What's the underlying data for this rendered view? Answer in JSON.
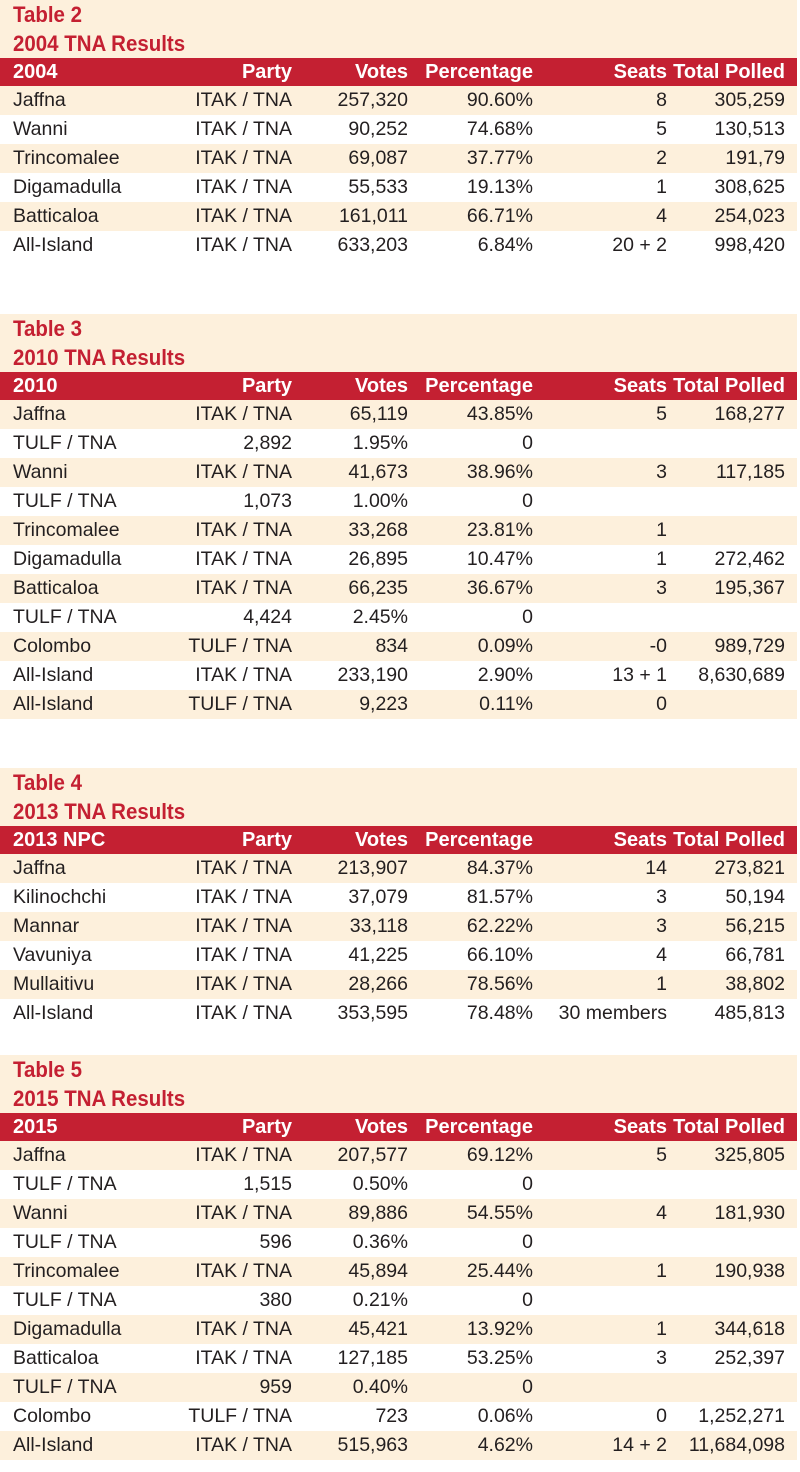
{
  "headers": {
    "party": "Party",
    "votes": "Votes",
    "percentage": "Percentage",
    "seats": "Seats",
    "total": "Total Polled"
  },
  "tables": [
    {
      "label": "Table 2",
      "title": "2004 TNA Results",
      "first_col": "2004",
      "rows": [
        {
          "name": "Jaffna",
          "party": "ITAK / TNA",
          "votes": "257,320",
          "pct": "90.60%",
          "seats": "8",
          "total": "305,259"
        },
        {
          "name": "Wanni",
          "party": "ITAK / TNA",
          "votes": "90,252",
          "pct": "74.68%",
          "seats": "5",
          "total": "130,513"
        },
        {
          "name": "Trincomalee",
          "party": "ITAK / TNA",
          "votes": "69,087",
          "pct": "37.77%",
          "seats": "2",
          "total": "191,79"
        },
        {
          "name": "Digamadulla",
          "party": "ITAK / TNA",
          "votes": "55,533",
          "pct": "19.13%",
          "seats": "1",
          "total": "308,625"
        },
        {
          "name": "Batticaloa",
          "party": "ITAK / TNA",
          "votes": "161,011",
          "pct": "66.71%",
          "seats": "4",
          "total": "254,023"
        },
        {
          "name": "All-Island",
          "party": "ITAK / TNA",
          "votes": "633,203",
          "pct": "6.84%",
          "seats": "20 + 2",
          "total": "998,420"
        }
      ]
    },
    {
      "label": "Table 3",
      "title": "2010 TNA Results",
      "first_col": "2010",
      "rows": [
        {
          "name": "Jaffna",
          "party": "ITAK / TNA",
          "votes": "65,119",
          "pct": "43.85%",
          "seats": "5",
          "total": "168,277"
        },
        {
          "shift": true,
          "name": "TULF / TNA",
          "votes": "2,892",
          "pct": "1.95%",
          "seats": "0"
        },
        {
          "name": "Wanni",
          "party": "ITAK / TNA",
          "votes": "41,673",
          "pct": "38.96%",
          "seats": "3",
          "total": "117,185"
        },
        {
          "shift": true,
          "name": "TULF / TNA",
          "votes": "1,073",
          "pct": "1.00%",
          "seats": "0"
        },
        {
          "name": "Trincomalee",
          "party": "ITAK / TNA",
          "votes": "33,268",
          "pct": "23.81%",
          "seats": "1",
          "total": ""
        },
        {
          "name": "Digamadulla",
          "party": "ITAK / TNA",
          "votes": "26,895",
          "pct": "10.47%",
          "seats": "1",
          "total": "272,462"
        },
        {
          "name": "Batticaloa",
          "party": "ITAK / TNA",
          "votes": "66,235",
          "pct": "36.67%",
          "seats": "3",
          "total": "195,367"
        },
        {
          "shift": true,
          "name": "TULF / TNA",
          "votes": "4,424",
          "pct": "2.45%",
          "seats": "0"
        },
        {
          "name": "Colombo",
          "party": "TULF / TNA",
          "votes": "834",
          "pct": "0.09%",
          "seats": "-0",
          "total": "989,729"
        },
        {
          "name": "All-Island",
          "party": "ITAK / TNA",
          "votes": "233,190",
          "pct": "2.90%",
          "seats": "13 + 1",
          "total": "8,630,689"
        },
        {
          "name": "All-Island",
          "party": "TULF / TNA",
          "votes": "9,223",
          "pct": "0.11%",
          "seats": "0",
          "total": ""
        }
      ]
    },
    {
      "label": "Table 4",
      "title": "2013 TNA Results",
      "first_col": "2013 NPC",
      "rows": [
        {
          "name": "Jaffna",
          "party": "ITAK / TNA",
          "votes": "213,907",
          "pct": "84.37%",
          "seats": "14",
          "total": "273,821"
        },
        {
          "name": "Kilinochchi",
          "party": "ITAK / TNA",
          "votes": "37,079",
          "pct": "81.57%",
          "seats": "3",
          "total": "50,194"
        },
        {
          "name": "Mannar",
          "party": "ITAK / TNA",
          "votes": "33,118",
          "pct": "62.22%",
          "seats": "3",
          "total": "56,215"
        },
        {
          "name": "Vavuniya",
          "party": "ITAK / TNA",
          "votes": "41,225",
          "pct": "66.10%",
          "seats": "4",
          "total": "66,781"
        },
        {
          "name": "Mullaitivu",
          "party": "ITAK / TNA",
          "votes": "28,266",
          "pct": "78.56%",
          "seats": "1",
          "total": "38,802"
        },
        {
          "name": "All-Island",
          "party": "ITAK / TNA",
          "votes": "353,595",
          "pct": "78.48%",
          "seats": "30 members",
          "total": "485,813"
        }
      ]
    },
    {
      "label": "Table 5",
      "title": "2015 TNA Results",
      "first_col": "2015",
      "rows": [
        {
          "name": "Jaffna",
          "party": "ITAK / TNA",
          "votes": "207,577",
          "pct": "69.12%",
          "seats": "5",
          "total": "325,805"
        },
        {
          "shift": true,
          "name": "TULF / TNA",
          "votes": "1,515",
          "pct": "0.50%",
          "seats": "0"
        },
        {
          "name": "Wanni",
          "party": "ITAK / TNA",
          "votes": "89,886",
          "pct": "54.55%",
          "seats": "4",
          "total": "181,930"
        },
        {
          "shift": true,
          "name": "TULF / TNA",
          "votes": "596",
          "pct": "0.36%",
          "seats": "0"
        },
        {
          "name": "Trincomalee",
          "party": "ITAK / TNA",
          "votes": "45,894",
          "pct": "25.44%",
          "seats": "1",
          "total": "190,938"
        },
        {
          "shift": true,
          "name": "TULF / TNA",
          "votes": "380",
          "pct": "0.21%",
          "seats": "0"
        },
        {
          "name": "Digamadulla",
          "party": "ITAK / TNA",
          "votes": "45,421",
          "pct": "13.92%",
          "seats": "1",
          "total": "344,618"
        },
        {
          "name": "Batticaloa",
          "party": "ITAK / TNA",
          "votes": "127,185",
          "pct": "53.25%",
          "seats": "3",
          "total": "252,397"
        },
        {
          "shift": true,
          "name": "TULF / TNA",
          "votes": "959",
          "pct": "0.40%",
          "seats": "0"
        },
        {
          "name": "Colombo",
          "party": "TULF / TNA",
          "votes": "723",
          "pct": "0.06%",
          "seats": "0",
          "total": "1,252,271"
        },
        {
          "name": "All-Island",
          "party": "ITAK / TNA",
          "votes": "515,963",
          "pct": "4.62%",
          "seats": "14 + 2",
          "total": "11,684,098"
        }
      ]
    }
  ],
  "colors": {
    "accent_red": "#c42032",
    "band_cream": "#fdf0dc"
  }
}
